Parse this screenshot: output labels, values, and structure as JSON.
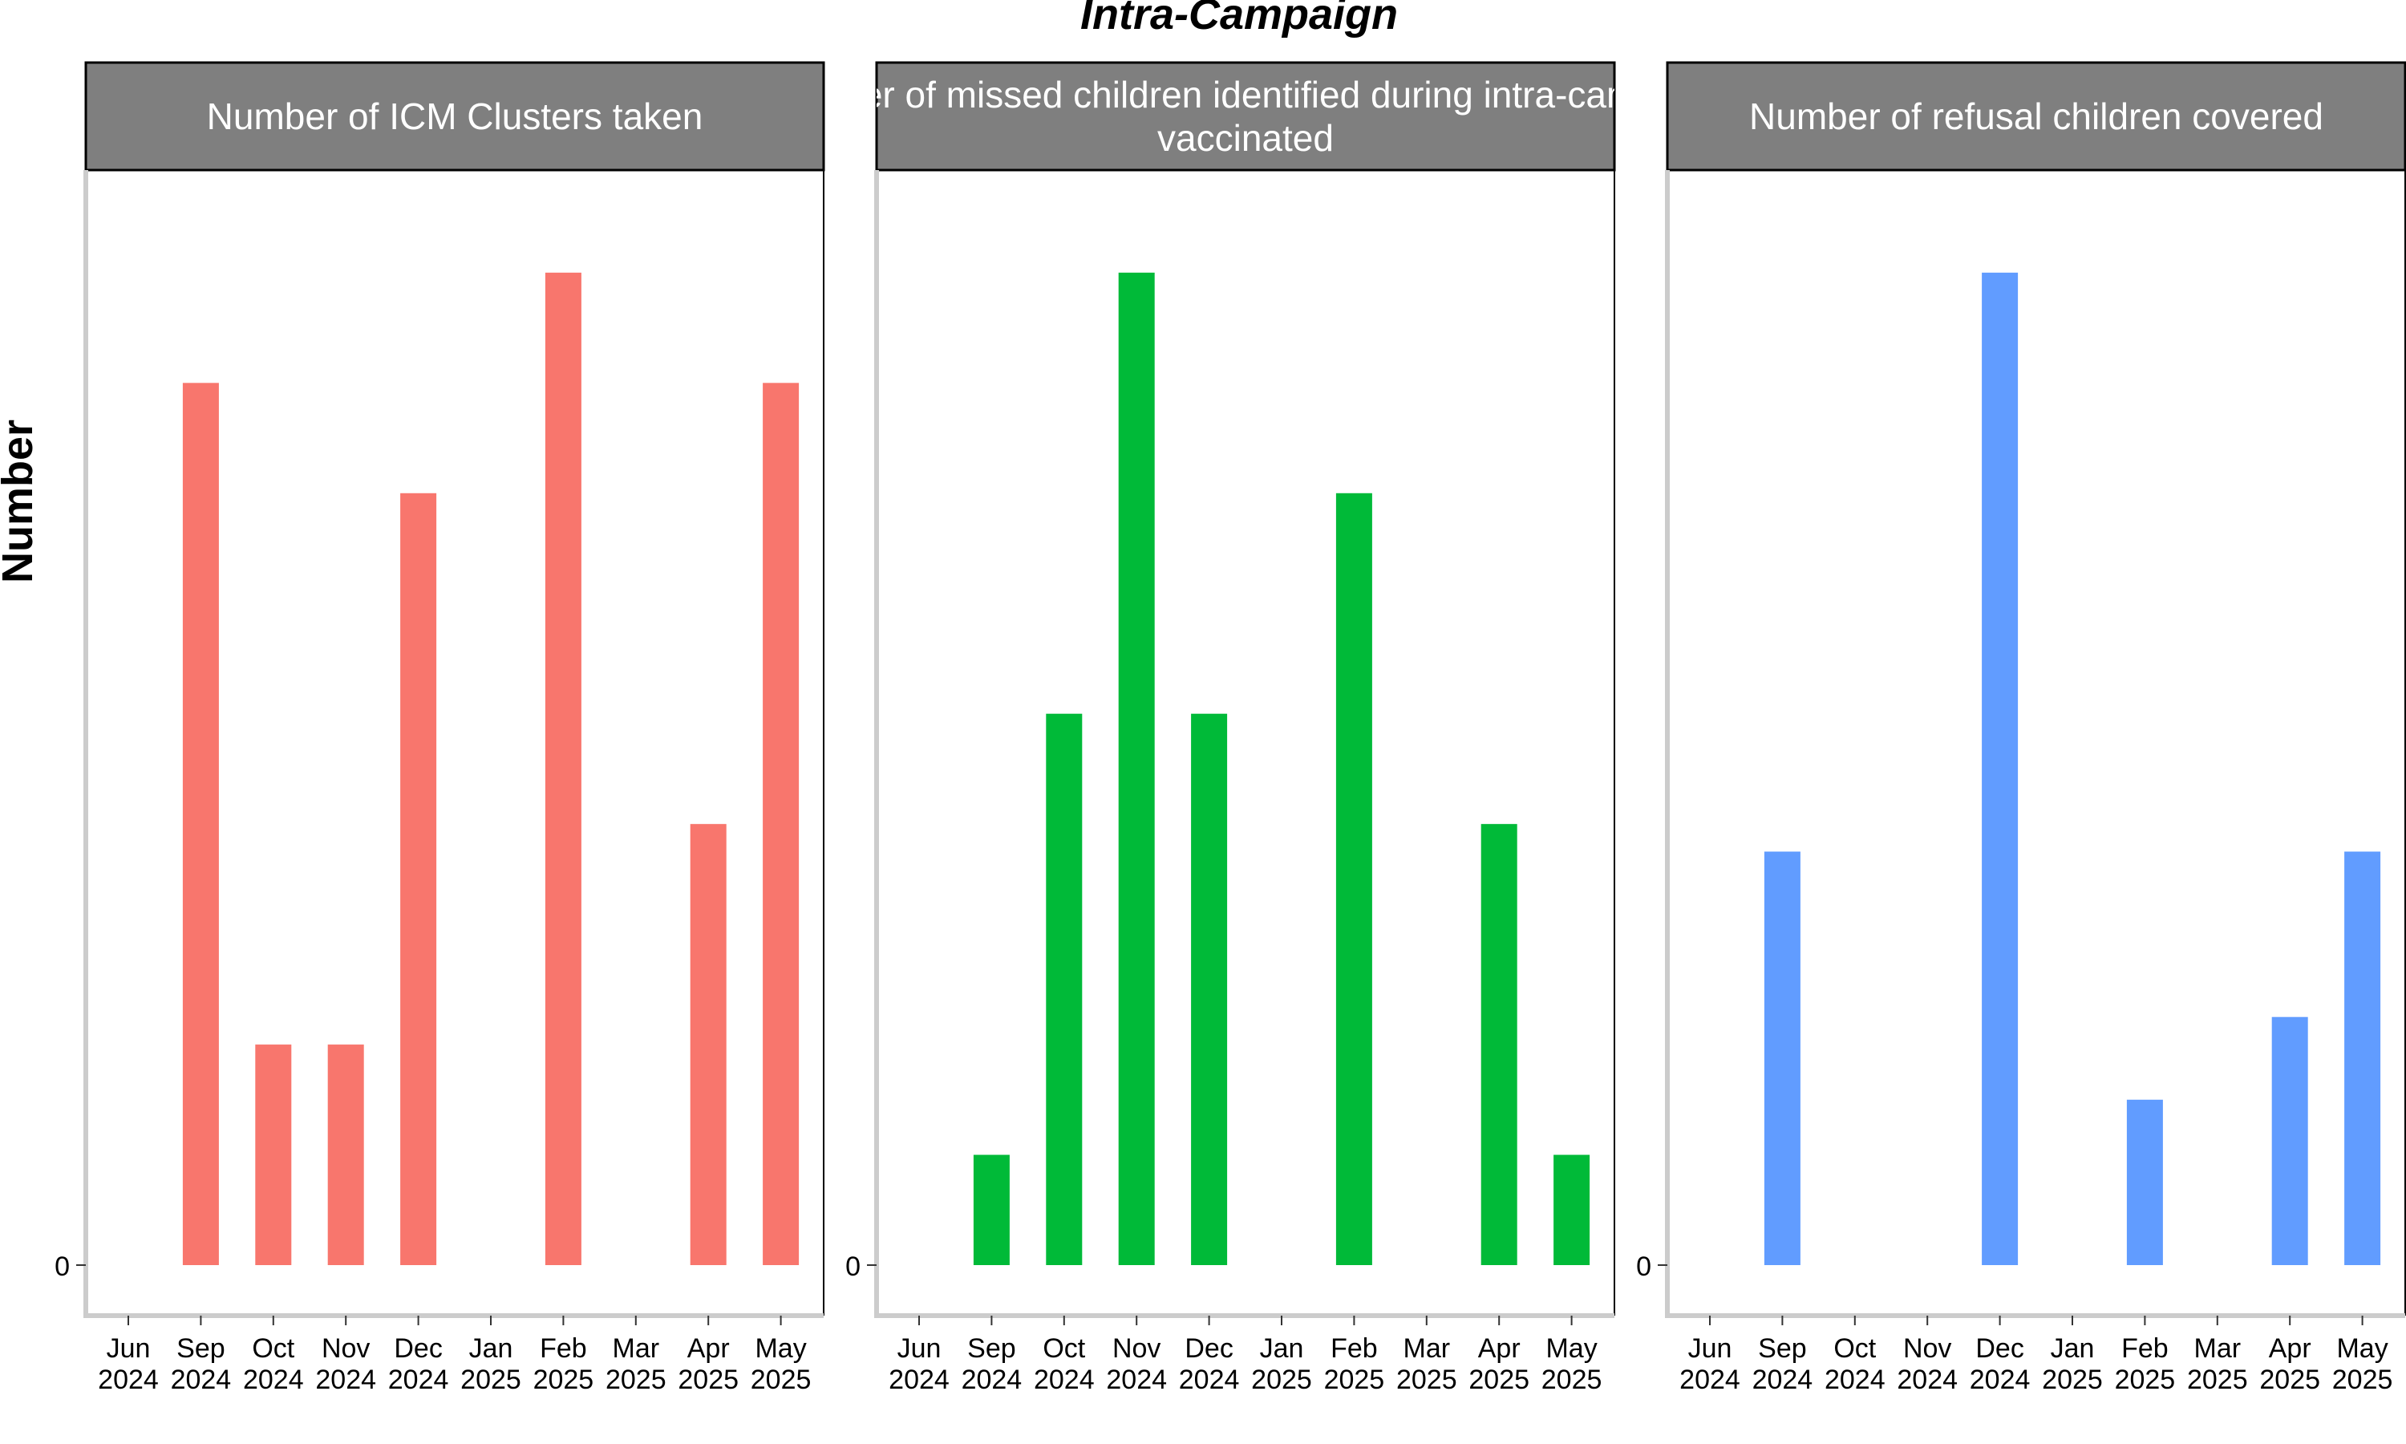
{
  "chart_data": {
    "type": "bar",
    "title": "Intra-Campaign",
    "ylabel": "Number",
    "y_tick_labels": [
      "0"
    ],
    "categories": [
      [
        "Jun",
        "2024"
      ],
      [
        "Sep",
        "2024"
      ],
      [
        "Oct",
        "2024"
      ],
      [
        "Nov",
        "2024"
      ],
      [
        "Dec",
        "2024"
      ],
      [
        "Jan",
        "2025"
      ],
      [
        "Feb",
        "2025"
      ],
      [
        "Mar",
        "2025"
      ],
      [
        "Apr",
        "2025"
      ],
      [
        "May",
        "2025"
      ]
    ],
    "panels": [
      {
        "strip_lines": [
          "Number of ICM Clusters taken"
        ],
        "color": "#F8766D",
        "ylim": [
          0,
          9.45
        ],
        "values": [
          0,
          8,
          2,
          2,
          7,
          0,
          9,
          0,
          4,
          8
        ]
      },
      {
        "strip_lines": [
          "Number of missed children identified during intra-campaign",
          "vaccinated"
        ],
        "color": "#00BA38",
        "ylim": [
          0,
          9.45
        ],
        "values": [
          0,
          1,
          5,
          9,
          5,
          0,
          7,
          0,
          4,
          1
        ]
      },
      {
        "strip_lines": [
          "Number of refusal children covered"
        ],
        "color": "#619CFF",
        "ylim": [
          0,
          12.6
        ],
        "values": [
          0,
          5,
          0,
          0,
          12,
          0,
          2,
          0,
          3,
          5
        ]
      }
    ]
  }
}
